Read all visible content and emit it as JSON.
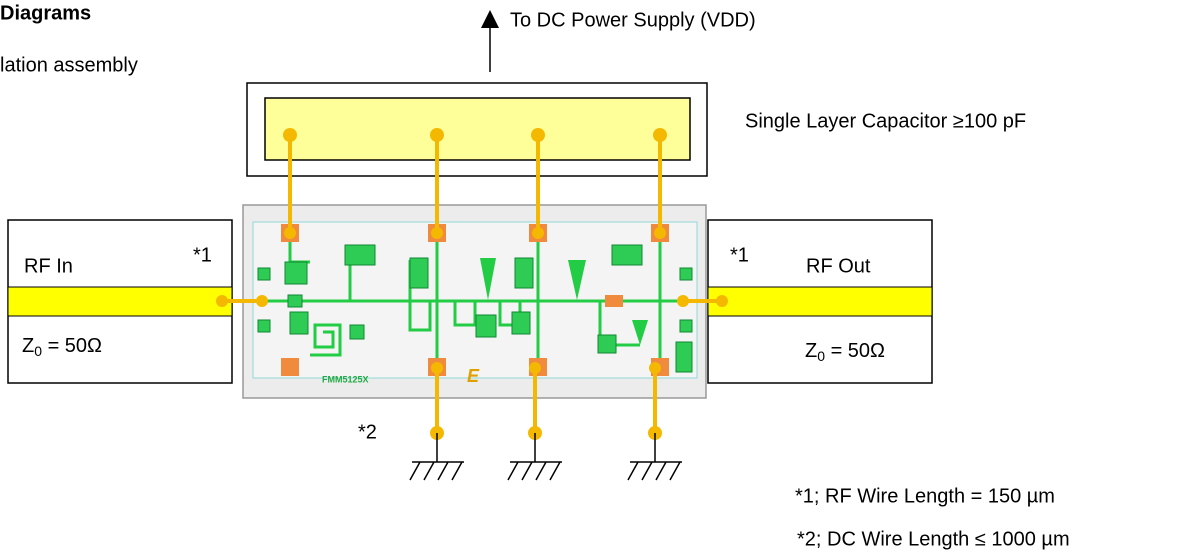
{
  "header": {
    "title": "Diagrams",
    "subtitle": "lation assembly"
  },
  "supply": {
    "label": "To DC Power Supply (VDD)"
  },
  "capacitor": {
    "label": "Single Layer Capacitor ≥100 pF"
  },
  "rf_in": {
    "label": "RF In",
    "note": "*1",
    "impedance": {
      "symbol": "Z",
      "sub": "0",
      "rest": " = 50Ω"
    }
  },
  "rf_out": {
    "label": "RF Out",
    "note": "*1",
    "impedance": {
      "symbol": "Z",
      "sub": "0",
      "rest": " = 50Ω"
    }
  },
  "chip": {
    "label": "FMM5125X",
    "logo": "E"
  },
  "dc_note": "*2",
  "footnotes": [
    "*1; RF Wire Length = 150 µm",
    "*2; DC Wire Length ≤ 1000 µm"
  ]
}
